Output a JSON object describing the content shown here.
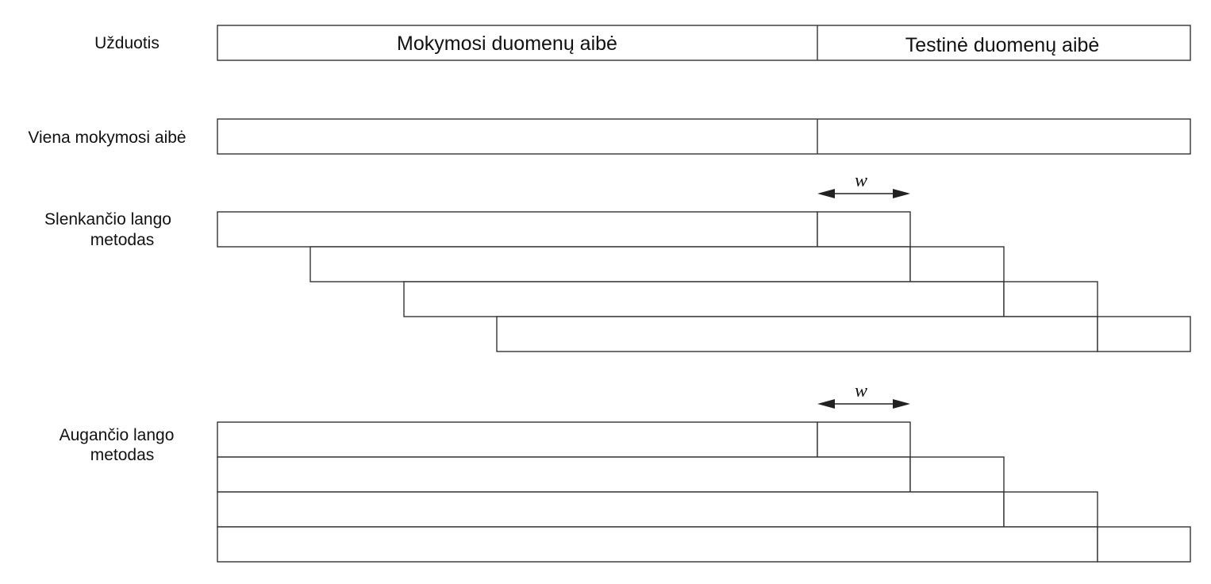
{
  "labels": {
    "task": "Užduotis",
    "train_set": "Mokymosi duomenų aibė",
    "test_set": "Testinė duomenų aibė",
    "single_split": "Viena mokymosi aibė",
    "sliding_line1": "Slenkančio lango",
    "sliding_line2": "metodas",
    "expanding_line1": "Augančio lango",
    "expanding_line2": "metodas",
    "window": "w"
  },
  "colors": {
    "stroke": "#333333",
    "text": "#111111",
    "background": "#ffffff"
  }
}
